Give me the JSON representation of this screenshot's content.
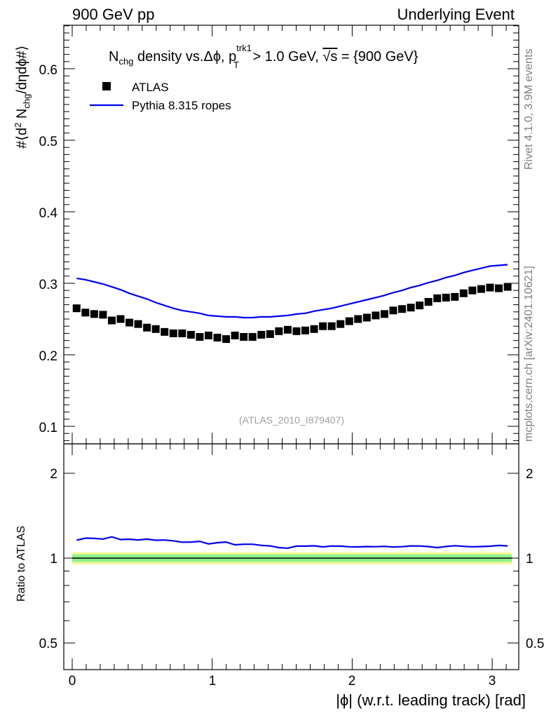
{
  "header": {
    "left": "900 GeV pp",
    "right": "Underlying Event"
  },
  "side_labels": {
    "rivet": "Rivet 4.1.0,  3.9M events",
    "mcplots": "mcplots.cern.ch [arXiv:2401.10621]"
  },
  "main_plot": {
    "title_parts": {
      "n": "N",
      "chg": "chg",
      "mid": " density vs.Δϕ, p",
      "sup": "trk1",
      "sub": "T",
      "tail": " > 1.0 GeV, ",
      "sqrt": "√s",
      "end": " = {900 GeV}"
    },
    "ylabel": "#⟨d² N_chg/dηdϕ#⟩",
    "ylabel_parts": {
      "a": "#⟨d",
      "b": "2",
      "c": " N",
      "d": "chg",
      "e": "/dηdϕ#⟩"
    },
    "watermark": "(ATLAS_2010_I879407)",
    "legend": [
      {
        "label": "ATLAS",
        "kind": "marker"
      },
      {
        "label": "Pythia 8.315 ropes",
        "kind": "line"
      }
    ],
    "ytick_labels": [
      "0.1",
      "0.2",
      "0.3",
      "0.4",
      "0.5",
      "0.6"
    ]
  },
  "ratio_plot": {
    "ylabel": "Ratio to ATLAS",
    "ytick_labels": [
      "0.5",
      "1",
      "2"
    ]
  },
  "xaxis": {
    "label": "|ϕ| (w.r.t. leading track) [rad]",
    "tick_labels": [
      "0",
      "1",
      "2",
      "3"
    ]
  },
  "colors": {
    "mc": "#0000ee",
    "band_inner": "#8ef28e",
    "band_outer": "#f2f79a",
    "data": "#000000"
  },
  "chart_data": [
    {
      "type": "scatter",
      "title": "N_chg density vs. Δϕ, p_T^trk1 > 1.0 GeV, √s = {900 GeV}",
      "xlabel": "|ϕ| (w.r.t. leading track) [rad]",
      "ylabel": "#⟨d² N_chg/dηdϕ#⟩",
      "xlim": [
        -0.07,
        3.22
      ],
      "ylim": [
        0.07,
        0.67
      ],
      "x": [
        0.0314,
        0.0942,
        0.157,
        0.2199,
        0.2827,
        0.3456,
        0.4084,
        0.4712,
        0.5341,
        0.5969,
        0.6597,
        0.7226,
        0.7854,
        0.8482,
        0.9111,
        0.9739,
        1.0367,
        1.0996,
        1.1624,
        1.2252,
        1.2881,
        1.3509,
        1.4137,
        1.4765,
        1.5394,
        1.6022,
        1.665,
        1.7279,
        1.7907,
        1.8535,
        1.9164,
        1.9792,
        2.042,
        2.1049,
        2.1677,
        2.2305,
        2.2934,
        2.3562,
        2.419,
        2.4819,
        2.5447,
        2.6075,
        2.6704,
        2.7332,
        2.796,
        2.8588,
        2.9217,
        2.9845,
        3.0473,
        3.1102
      ],
      "series": [
        {
          "name": "ATLAS",
          "values": [
            0.265,
            0.259,
            0.257,
            0.256,
            0.248,
            0.25,
            0.245,
            0.243,
            0.238,
            0.236,
            0.232,
            0.23,
            0.23,
            0.228,
            0.225,
            0.227,
            0.224,
            0.222,
            0.227,
            0.225,
            0.225,
            0.228,
            0.229,
            0.233,
            0.235,
            0.233,
            0.234,
            0.236,
            0.24,
            0.24,
            0.243,
            0.247,
            0.25,
            0.252,
            0.255,
            0.257,
            0.262,
            0.264,
            0.266,
            0.269,
            0.274,
            0.279,
            0.28,
            0.281,
            0.286,
            0.29,
            0.292,
            0.294,
            0.293,
            0.295
          ]
        },
        {
          "name": "Pythia 8.315 ropes",
          "values": [
            0.307,
            0.305,
            0.302,
            0.299,
            0.295,
            0.291,
            0.286,
            0.282,
            0.278,
            0.273,
            0.269,
            0.265,
            0.262,
            0.26,
            0.258,
            0.255,
            0.254,
            0.253,
            0.253,
            0.252,
            0.252,
            0.253,
            0.253,
            0.254,
            0.255,
            0.257,
            0.258,
            0.261,
            0.263,
            0.265,
            0.268,
            0.271,
            0.274,
            0.277,
            0.28,
            0.283,
            0.287,
            0.29,
            0.294,
            0.297,
            0.301,
            0.304,
            0.308,
            0.311,
            0.315,
            0.318,
            0.321,
            0.324,
            0.325,
            0.326
          ]
        }
      ]
    },
    {
      "type": "line",
      "title": "Ratio to ATLAS",
      "xlabel": "|ϕ| (w.r.t. leading track) [rad]",
      "ylabel": "Ratio to ATLAS",
      "xscale": "linear",
      "yscale": "log",
      "xlim": [
        -0.07,
        3.22
      ],
      "ylim": [
        0.4,
        2.5
      ],
      "x": [
        0.0314,
        0.0942,
        0.157,
        0.2199,
        0.2827,
        0.3456,
        0.4084,
        0.4712,
        0.5341,
        0.5969,
        0.6597,
        0.7226,
        0.7854,
        0.8482,
        0.9111,
        0.9739,
        1.0367,
        1.0996,
        1.1624,
        1.2252,
        1.2881,
        1.3509,
        1.4137,
        1.4765,
        1.5394,
        1.6022,
        1.665,
        1.7279,
        1.7907,
        1.8535,
        1.9164,
        1.9792,
        2.042,
        2.1049,
        2.1677,
        2.2305,
        2.2934,
        2.3562,
        2.419,
        2.4819,
        2.5447,
        2.6075,
        2.6704,
        2.7332,
        2.796,
        2.8588,
        2.9217,
        2.9845,
        3.0473,
        3.1102
      ],
      "series": [
        {
          "name": "Pythia 8.315 ropes / ATLAS",
          "values": [
            1.158,
            1.177,
            1.175,
            1.168,
            1.19,
            1.164,
            1.167,
            1.16,
            1.168,
            1.157,
            1.159,
            1.152,
            1.139,
            1.14,
            1.147,
            1.123,
            1.134,
            1.14,
            1.115,
            1.12,
            1.12,
            1.11,
            1.105,
            1.09,
            1.085,
            1.103,
            1.103,
            1.106,
            1.096,
            1.104,
            1.103,
            1.097,
            1.096,
            1.099,
            1.098,
            1.101,
            1.095,
            1.098,
            1.105,
            1.104,
            1.099,
            1.09,
            1.1,
            1.107,
            1.101,
            1.097,
            1.099,
            1.102,
            1.109,
            1.105
          ]
        }
      ],
      "reference": 1.0,
      "band_inner": [
        0.97,
        1.03
      ],
      "band_outer": [
        0.95,
        1.05
      ]
    }
  ]
}
